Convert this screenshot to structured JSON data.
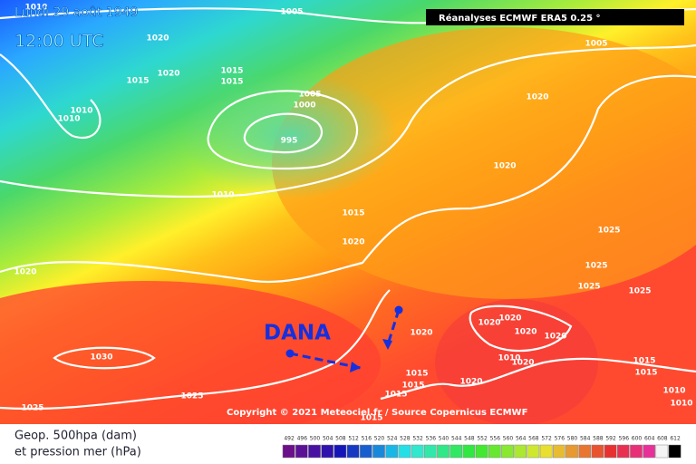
{
  "header": {
    "date": "Lundi 29 août 1949",
    "time": "12:00 UTC",
    "source_box": "Réanalyses ECMWF ERA5 0.25 °"
  },
  "annotation": "DANA",
  "copyright": "Copyright © 2021 Meteociel.fr / Source Copernicus ECMWF",
  "legend": {
    "line1": "Geop. 500hpa (dam)",
    "line2": "et pression mer (hPa)",
    "scale": [
      492,
      496,
      500,
      504,
      508,
      512,
      516,
      520,
      524,
      528,
      532,
      536,
      540,
      544,
      548,
      552,
      556,
      560,
      564,
      568,
      572,
      576,
      580,
      584,
      588,
      592,
      596,
      600,
      604,
      608,
      612
    ]
  },
  "isobar_labels": [
    1010,
    1005,
    1020,
    1020,
    1015,
    1015,
    1015,
    1010,
    1010,
    1005,
    1000,
    995,
    1005,
    1020,
    1020,
    1010,
    1015,
    1020,
    1020,
    1025,
    1025,
    1025,
    1025,
    1020,
    1020,
    1020,
    1020,
    1020,
    1030,
    1025,
    1025,
    1020,
    1015,
    1015,
    1015,
    1015,
    1015,
    1015,
    1010,
    1010,
    1020,
    1010
  ]
}
